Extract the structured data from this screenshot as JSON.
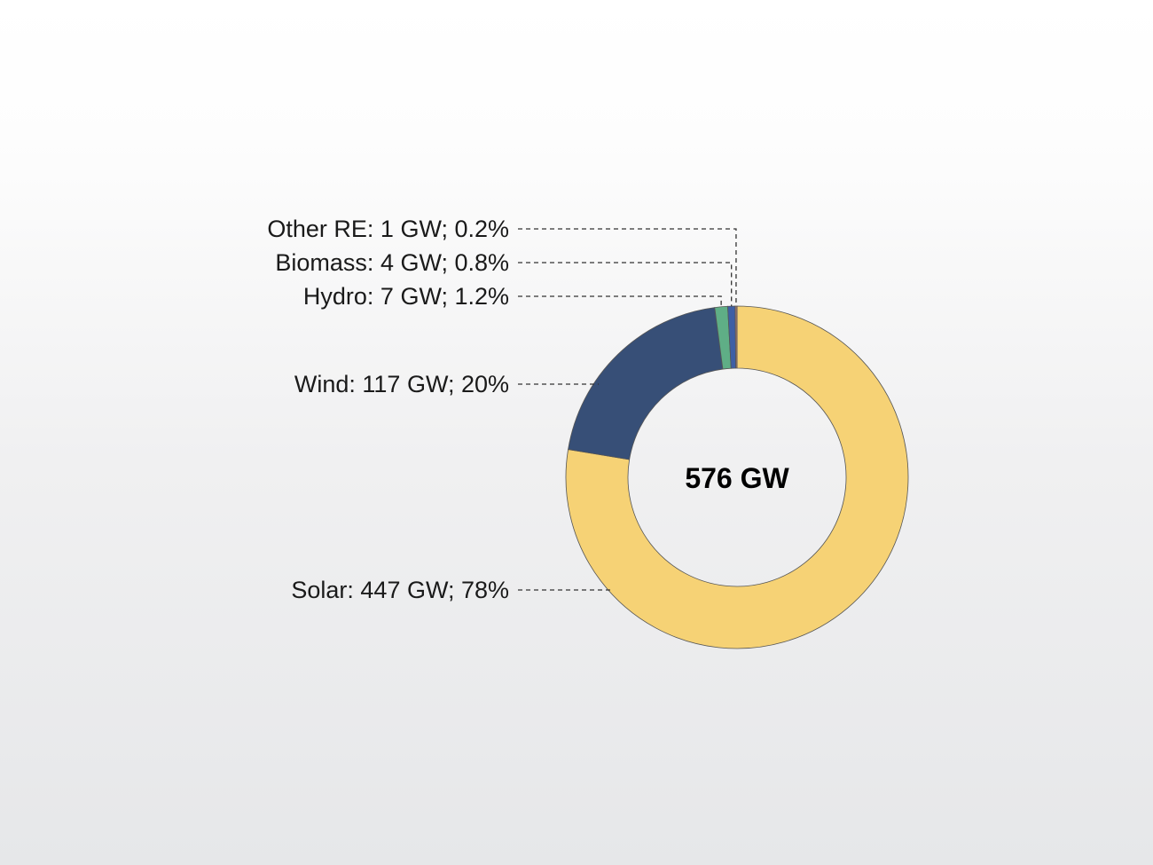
{
  "chart_data": {
    "type": "pie",
    "variant": "donut",
    "center_label": "576 GW",
    "total": 576,
    "unit": "GW",
    "start": "12 o'clock",
    "direction": "clockwise",
    "legend": "none",
    "slices": [
      {
        "name": "Solar",
        "value": 447,
        "percent": 78,
        "label": "Solar: 447 GW; 78%",
        "color": "#f6d275"
      },
      {
        "name": "Wind",
        "value": 117,
        "percent": 20,
        "label": "Wind: 117 GW; 20%",
        "color": "#374f77"
      },
      {
        "name": "Hydro",
        "value": 7,
        "percent": 1.2,
        "label": "Hydro: 7 GW; 1.2%",
        "color": "#5fae86"
      },
      {
        "name": "Biomass",
        "value": 4,
        "percent": 0.8,
        "label": "Biomass: 4 GW; 0.8%",
        "color": "#3e5fa5"
      },
      {
        "name": "Other RE",
        "value": 1,
        "percent": 0.2,
        "label": "Other RE: 1 GW; 0.2%",
        "color": "#a57a70"
      }
    ]
  }
}
